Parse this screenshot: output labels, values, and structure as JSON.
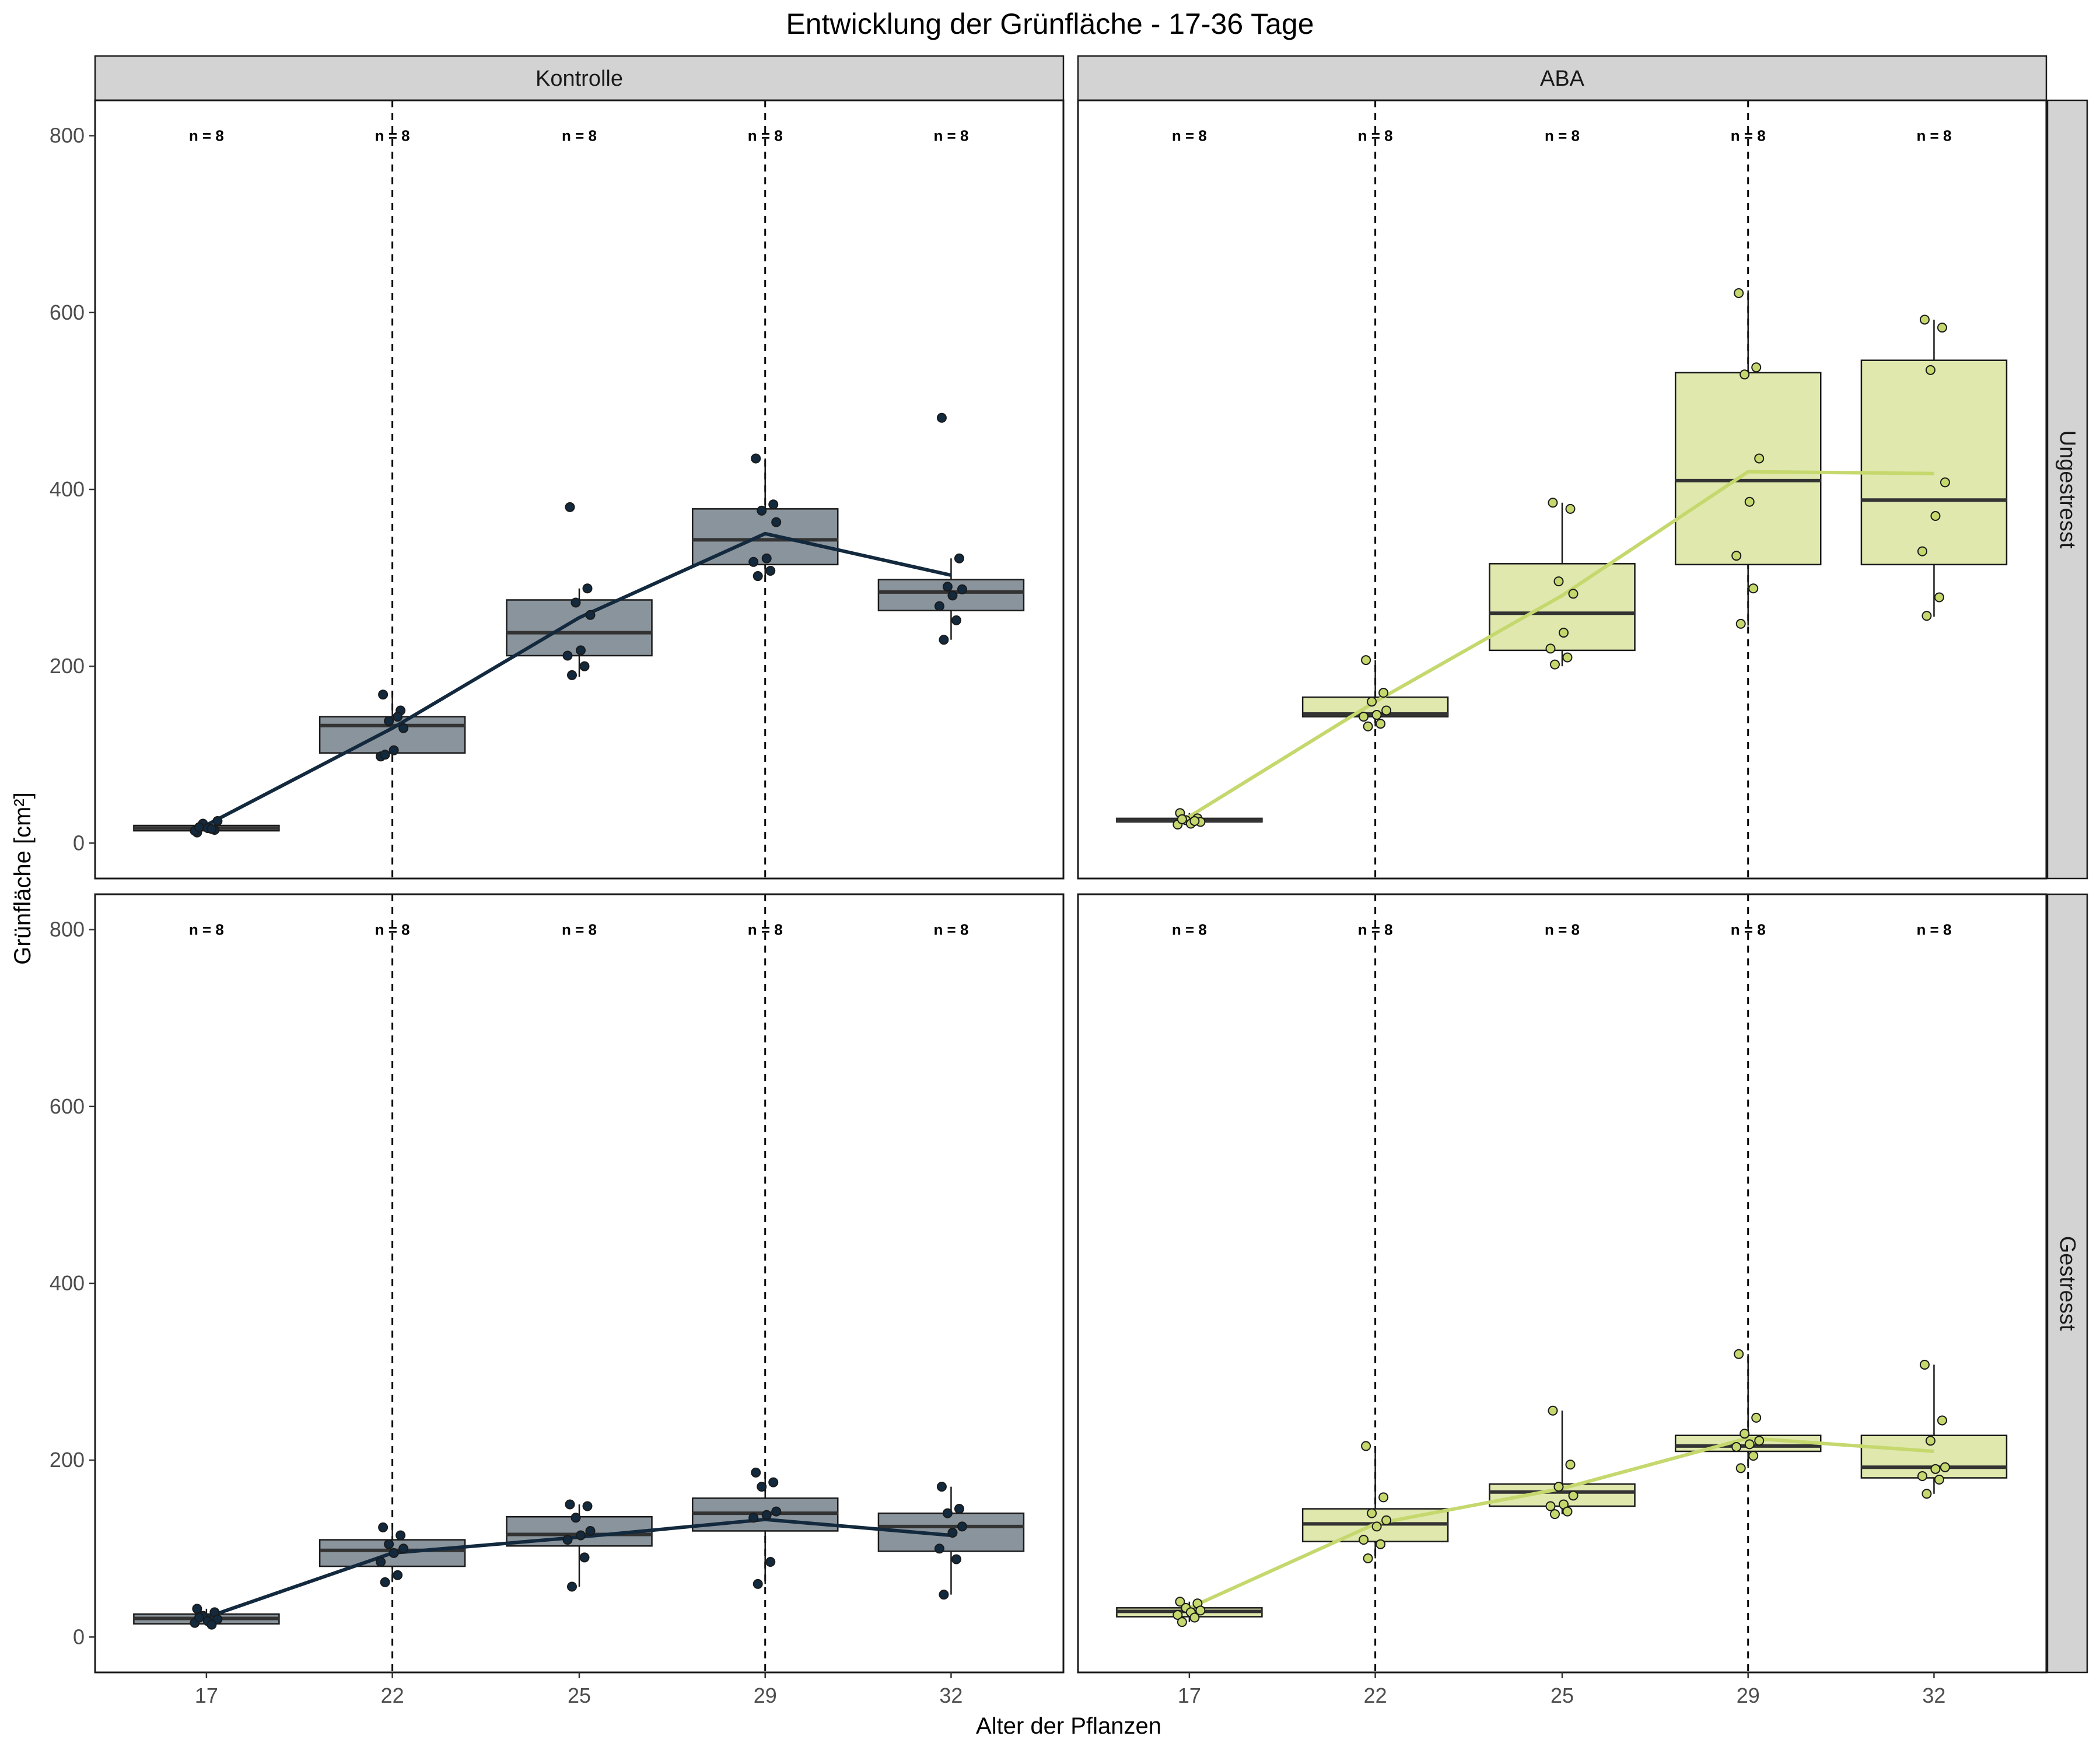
{
  "chart_data": {
    "type": "box",
    "title": "Entwicklung der Grünfläche - 17-36 Tage",
    "xlabel": "Alter der Pflanzen",
    "ylabel": "Grünfläche [cm²]",
    "categories": [
      "17",
      "22",
      "25",
      "29",
      "32"
    ],
    "ylim": [
      -40,
      840
    ],
    "yticks": [
      0,
      200,
      400,
      600,
      800
    ],
    "vlines_at": [
      "22",
      "29"
    ],
    "n_label": "n = 8",
    "col_facets": [
      "Kontrolle",
      "ABA"
    ],
    "row_facets": [
      "Ungestresst",
      "Gestresst"
    ],
    "colors": {
      "Kontrolle": {
        "fill": "#8A949C",
        "line": "#13293D",
        "point": "#13293D"
      },
      "ABA": {
        "fill": "#E0E8AE",
        "line": "#C5D86D",
        "point": "#C5D86D"
      },
      "strip": "#D3D3D3",
      "border": "#1a1a1a",
      "median": "#333333"
    },
    "panels": [
      {
        "treatment": "Kontrolle",
        "stress": "Ungestresst",
        "boxes": [
          {
            "x": "17",
            "q1": 14,
            "median": 17,
            "q3": 20,
            "low": 12,
            "high": 24
          },
          {
            "x": "22",
            "q1": 102,
            "median": 133,
            "q3": 143,
            "low": 97,
            "high": 168
          },
          {
            "x": "25",
            "q1": 212,
            "median": 238,
            "q3": 275,
            "low": 188,
            "high": 288
          },
          {
            "x": "29",
            "q1": 315,
            "median": 343,
            "q3": 378,
            "low": 300,
            "high": 435
          },
          {
            "x": "32",
            "q1": 263,
            "median": 284,
            "q3": 298,
            "low": 230,
            "high": 322
          }
        ],
        "points": [
          [
            12,
            15,
            22,
            25,
            17,
            14,
            16,
            18
          ],
          [
            168,
            150,
            138,
            130,
            105,
            98,
            143,
            100
          ],
          [
            380,
            288,
            272,
            258,
            218,
            212,
            200,
            190
          ],
          [
            435,
            383,
            376,
            363,
            322,
            318,
            308,
            302
          ],
          [
            481,
            322,
            290,
            287,
            280,
            268,
            252,
            230
          ]
        ],
        "means": [
          17,
          130,
          255,
          350,
          303
        ]
      },
      {
        "treatment": "ABA",
        "stress": "Ungestresst",
        "boxes": [
          {
            "x": "17",
            "q1": 24,
            "median": 26,
            "q3": 28,
            "low": 20,
            "high": 34
          },
          {
            "x": "22",
            "q1": 143,
            "median": 146,
            "q3": 165,
            "low": 132,
            "high": 207
          },
          {
            "x": "25",
            "q1": 218,
            "median": 260,
            "q3": 316,
            "low": 200,
            "high": 385
          },
          {
            "x": "29",
            "q1": 315,
            "median": 410,
            "q3": 532,
            "low": 246,
            "high": 625
          },
          {
            "x": "32",
            "q1": 315,
            "median": 388,
            "q3": 546,
            "low": 256,
            "high": 592
          }
        ],
        "points": [
          [
            34,
            28,
            26,
            24,
            22,
            21,
            25,
            27
          ],
          [
            207,
            170,
            160,
            150,
            145,
            143,
            135,
            132
          ],
          [
            385,
            378,
            296,
            282,
            238,
            220,
            210,
            202
          ],
          [
            622,
            538,
            530,
            435,
            386,
            325,
            288,
            248
          ],
          [
            592,
            583,
            535,
            408,
            370,
            330,
            278,
            257
          ]
        ],
        "means": [
          26,
          160,
          280,
          420,
          418
        ]
      },
      {
        "treatment": "Kontrolle",
        "stress": "Gestresst",
        "boxes": [
          {
            "x": "17",
            "q1": 15,
            "median": 21,
            "q3": 26,
            "low": 14,
            "high": 32
          },
          {
            "x": "22",
            "q1": 80,
            "median": 98,
            "q3": 110,
            "low": 62,
            "high": 124
          },
          {
            "x": "25",
            "q1": 103,
            "median": 116,
            "q3": 136,
            "low": 57,
            "high": 150
          },
          {
            "x": "29",
            "q1": 120,
            "median": 140,
            "q3": 157,
            "low": 60,
            "high": 186
          },
          {
            "x": "32",
            "q1": 97,
            "median": 125,
            "q3": 140,
            "low": 48,
            "high": 170
          }
        ],
        "points": [
          [
            32,
            28,
            24,
            20,
            18,
            16,
            14,
            22
          ],
          [
            124,
            115,
            105,
            100,
            95,
            85,
            70,
            62
          ],
          [
            150,
            148,
            135,
            120,
            115,
            110,
            90,
            57
          ],
          [
            186,
            175,
            170,
            142,
            138,
            135,
            85,
            60
          ],
          [
            170,
            145,
            140,
            125,
            118,
            100,
            88,
            48
          ]
        ],
        "means": [
          20,
          95,
          113,
          133,
          115
        ]
      },
      {
        "treatment": "ABA",
        "stress": "Gestresst",
        "boxes": [
          {
            "x": "17",
            "q1": 23,
            "median": 29,
            "q3": 33,
            "low": 17,
            "high": 40
          },
          {
            "x": "22",
            "q1": 108,
            "median": 128,
            "q3": 145,
            "low": 89,
            "high": 216
          },
          {
            "x": "25",
            "q1": 148,
            "median": 164,
            "q3": 173,
            "low": 139,
            "high": 256
          },
          {
            "x": "29",
            "q1": 210,
            "median": 216,
            "q3": 228,
            "low": 191,
            "high": 320
          },
          {
            "x": "32",
            "q1": 180,
            "median": 192,
            "q3": 228,
            "low": 162,
            "high": 308
          }
        ],
        "points": [
          [
            40,
            38,
            33,
            30,
            28,
            25,
            22,
            17
          ],
          [
            216,
            158,
            140,
            132,
            125,
            110,
            105,
            89
          ],
          [
            256,
            195,
            170,
            160,
            150,
            148,
            142,
            139
          ],
          [
            320,
            248,
            230,
            222,
            218,
            215,
            205,
            191
          ],
          [
            308,
            245,
            222,
            192,
            190,
            182,
            178,
            162
          ]
        ],
        "means": [
          30,
          128,
          168,
          225,
          210
        ]
      }
    ]
  }
}
